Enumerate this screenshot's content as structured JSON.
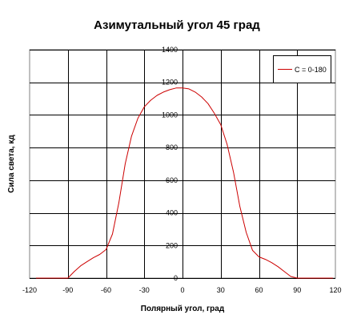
{
  "chart_data": {
    "type": "line",
    "title": "Азимутальный угол 45 град",
    "xlabel": "Полярный угол, град",
    "ylabel": "Сила света, кд",
    "xlim": [
      -120,
      120
    ],
    "ylim": [
      0,
      1400
    ],
    "x_ticks": [
      -120,
      -90,
      -60,
      -30,
      0,
      30,
      60,
      90,
      120
    ],
    "x_tick_labels": [
      "-120",
      "-90",
      "-60",
      "-30",
      "0",
      "30",
      "60",
      "90",
      "120"
    ],
    "y_ticks": [
      0,
      200,
      400,
      600,
      800,
      1000,
      1200,
      1400
    ],
    "y_tick_labels": [
      "0",
      "200",
      "400",
      "600",
      "800",
      "1000",
      "1200",
      "1400"
    ],
    "grid": true,
    "legend_position": "top-right",
    "colors": {
      "series": "#cc0000",
      "grid": "#000000",
      "plot_border": "#808080"
    },
    "series": [
      {
        "name": "C = 0-180",
        "x": [
          -115,
          -90,
          -85,
          -80,
          -75,
          -70,
          -65,
          -60,
          -55,
          -50,
          -45,
          -40,
          -35,
          -30,
          -25,
          -20,
          -15,
          -10,
          -5,
          0,
          5,
          10,
          15,
          20,
          25,
          30,
          35,
          40,
          45,
          50,
          55,
          60,
          65,
          70,
          75,
          80,
          85,
          90,
          118
        ],
        "y": [
          0,
          0,
          40,
          75,
          100,
          125,
          145,
          175,
          270,
          460,
          700,
          870,
          980,
          1050,
          1090,
          1120,
          1140,
          1155,
          1165,
          1165,
          1160,
          1140,
          1110,
          1070,
          1010,
          940,
          820,
          650,
          440,
          280,
          170,
          130,
          115,
          95,
          70,
          40,
          10,
          0,
          0
        ]
      }
    ]
  }
}
